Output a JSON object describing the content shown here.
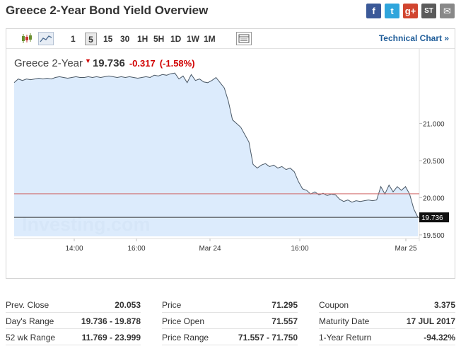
{
  "page_title": "Greece 2-Year Bond Yield Overview",
  "share": {
    "facebook": "f",
    "twitter": "t",
    "google_plus": "g+",
    "stocktwits": "ST",
    "email": "✉"
  },
  "toolbar": {
    "timeframes": [
      "1",
      "5",
      "15",
      "30",
      "1H",
      "5H",
      "1D",
      "1W",
      "1M"
    ],
    "selected_timeframe": "5",
    "tech_link": "Technical Chart »"
  },
  "quote": {
    "name": "Greece 2-Year",
    "last": "19.736",
    "change": "-0.317",
    "change_pct": "(-1.58%)",
    "direction": "down"
  },
  "chart_data": {
    "type": "area",
    "title": "",
    "watermark": "Investing.com",
    "x_tick_labels": [
      "14:00",
      "16:00",
      "Mar 24",
      "16:00",
      "Mar 25"
    ],
    "y_tick_labels": [
      "21.000",
      "20.500",
      "20.000",
      "19.500"
    ],
    "ylim": [
      19.48,
      21.72
    ],
    "prev_close": 20.053,
    "last_price": 19.736,
    "last_label": "19.736",
    "colors": {
      "line": "#4a5866",
      "fill": "#d6e8fb",
      "prev_close_line": "#d06868",
      "last_line": "#333333"
    },
    "series": [
      {
        "values": [
          21.55,
          21.6,
          21.58,
          21.6,
          21.59,
          21.6,
          21.61,
          21.6,
          21.61,
          21.6,
          21.62,
          21.63,
          21.62,
          21.61,
          21.62,
          21.63,
          21.62,
          21.62,
          21.63,
          21.62,
          21.63,
          21.62,
          21.63,
          21.64,
          21.63,
          21.62,
          21.63,
          21.62,
          21.63,
          21.62,
          21.61,
          21.62,
          21.63,
          21.62,
          21.65,
          21.64,
          21.66,
          21.65,
          21.67,
          21.68,
          21.6,
          21.64,
          21.55,
          21.66,
          21.58,
          21.6,
          21.56,
          21.55,
          21.58,
          21.62,
          21.55,
          21.48,
          21.3,
          21.05,
          21.0,
          20.95,
          20.85,
          20.75,
          20.45,
          20.4,
          20.44,
          20.46,
          20.42,
          20.44,
          20.4,
          20.42,
          20.38,
          20.4,
          20.35,
          20.22,
          20.12,
          20.1,
          20.05,
          20.08,
          20.04,
          20.06,
          20.03,
          20.05,
          20.04,
          19.98,
          19.95,
          19.97,
          19.94,
          19.96,
          19.95,
          19.96,
          19.97,
          19.96,
          19.97,
          20.15,
          20.05,
          20.17,
          20.08,
          20.15,
          20.1,
          20.15,
          20.05,
          19.85,
          19.736
        ]
      }
    ]
  },
  "stats": {
    "col1": [
      {
        "label": "Prev. Close",
        "value": "20.053"
      },
      {
        "label": "Day's Range",
        "value": "19.736 - 19.878"
      },
      {
        "label": "52 wk Range",
        "value": "11.769 - 23.999"
      }
    ],
    "col2": [
      {
        "label": "Price",
        "value": "71.295"
      },
      {
        "label": "Price Open",
        "value": "71.557"
      },
      {
        "label": "Price Range",
        "value": "71.557 - 71.750"
      }
    ],
    "col3": [
      {
        "label": "Coupon",
        "value": "3.375"
      },
      {
        "label": "Maturity Date",
        "value": "17 JUL 2017"
      },
      {
        "label": "1-Year Return",
        "value": "-94.32%"
      }
    ]
  }
}
